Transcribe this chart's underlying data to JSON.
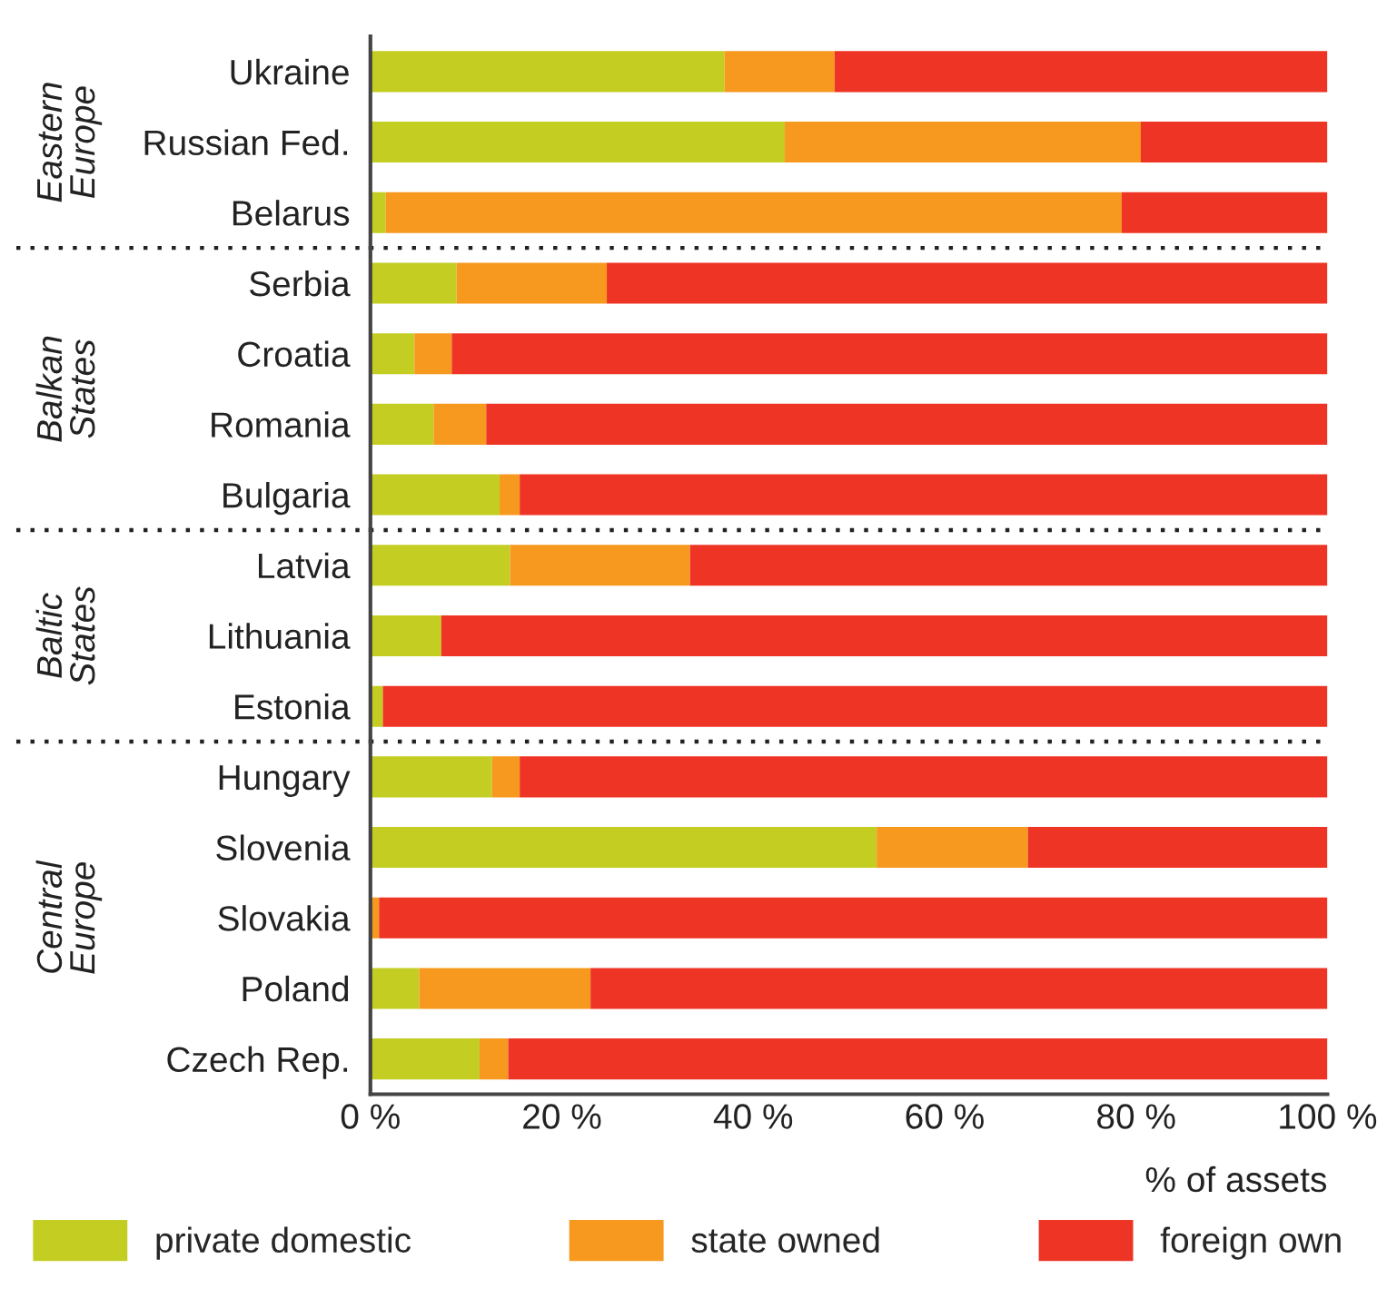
{
  "chart_data": [
    {
      "type": "bar",
      "orientation": "horizontal",
      "stacked": true,
      "tick_labels": "y",
      "ylabel": "Eastern\nEurope",
      "categories": [
        "Ukraine",
        "Russian Fed.",
        "Belarus"
      ],
      "series": [
        {
          "color": "#c3cd22",
          "values": [
            37,
            43.3,
            1.6
          ]
        },
        {
          "color": "#f7991f",
          "values": [
            11.5,
            37.2,
            76.9
          ]
        },
        {
          "color": "#ee3424",
          "values": [
            51.5,
            19.5,
            21.5
          ]
        }
      ],
      "xlim": [
        0,
        100
      ],
      "grid": false
    },
    {
      "type": "bar",
      "orientation": "horizontal",
      "stacked": true,
      "tick_labels": "y",
      "ylabel": "Balkan\nStates",
      "categories": [
        "Serbia",
        "Croatia",
        "Romania",
        "Bulgaria"
      ],
      "series": [
        {
          "color": "#c3cd22",
          "values": [
            9,
            4.6,
            6.6,
            13.5
          ]
        },
        {
          "color": "#f7991f",
          "values": [
            15.7,
            3.9,
            5.5,
            2.1
          ]
        },
        {
          "color": "#ee3424",
          "values": [
            75.3,
            91.5,
            87.9,
            84.4
          ]
        }
      ],
      "xlim": [
        0,
        100
      ],
      "grid": false
    },
    {
      "type": "bar",
      "orientation": "horizontal",
      "stacked": true,
      "tick_labels": "y",
      "ylabel": "Baltic\nStates",
      "categories": [
        "Latvia",
        "Lithuania",
        "Estonia"
      ],
      "series": [
        {
          "color": "#c3cd22",
          "values": [
            14.6,
            7.4,
            1.3
          ]
        },
        {
          "color": "#f7991f",
          "values": [
            18.8,
            0,
            0
          ]
        },
        {
          "color": "#ee3424",
          "values": [
            66.6,
            92.6,
            98.7
          ]
        }
      ],
      "xlim": [
        0,
        100
      ],
      "grid": false
    },
    {
      "type": "bar",
      "orientation": "horizontal",
      "stacked": true,
      "ylabel": "Central\nEurope",
      "xlabel": "% of assets",
      "categories": [
        "Hungary",
        "Slovenia",
        "Slovakia",
        "Poland",
        "Czech Rep."
      ],
      "series": [
        {
          "name": "private domestic",
          "color": "#c3cd22",
          "values": [
            12.7,
            52.9,
            0,
            5.1,
            11.4
          ]
        },
        {
          "name": "state owned",
          "color": "#f7991f",
          "values": [
            2.9,
            15.8,
            0.9,
            17.9,
            3.0
          ]
        },
        {
          "name": "foreign own",
          "color": "#ee3424",
          "values": [
            84.4,
            31.3,
            99.1,
            77,
            85.6
          ]
        }
      ],
      "xlim": [
        0,
        100
      ],
      "xticks": [
        {
          "value": 0,
          "label": "0 %"
        },
        {
          "value": 20,
          "label": "20 %"
        },
        {
          "value": 40,
          "label": "40 %"
        },
        {
          "value": 60,
          "label": "60 %"
        },
        {
          "value": 80,
          "label": "80 %"
        },
        {
          "value": 100,
          "label": "100 %"
        }
      ],
      "legend": "bottom",
      "grid": false
    }
  ]
}
